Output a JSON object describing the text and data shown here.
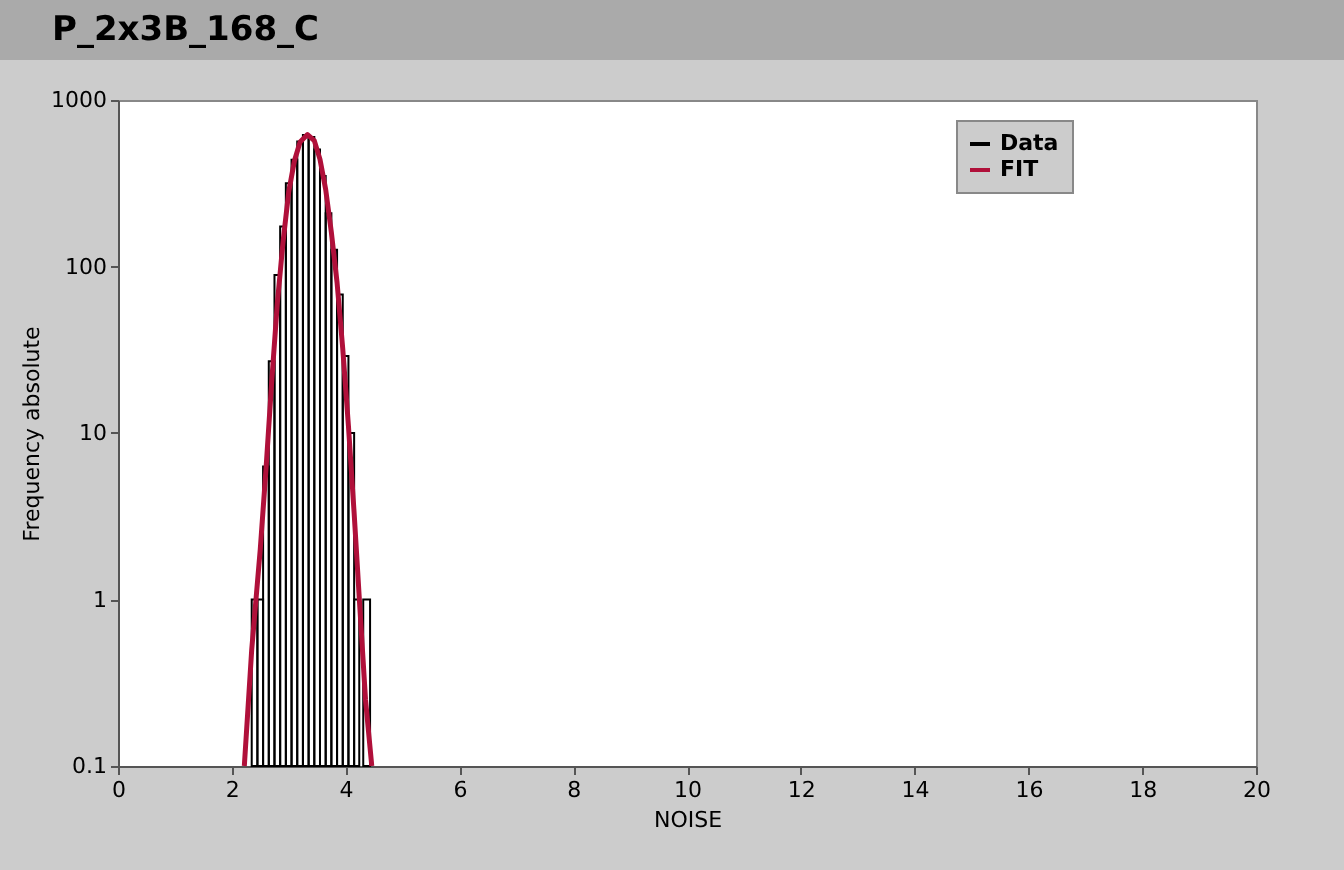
{
  "chart_data": {
    "type": "histogram",
    "title": "P_2x3B_168_C",
    "xlabel": "NOISE",
    "ylabel": "Frequency absolute",
    "log": true,
    "grid": false,
    "legend": "top right",
    "xlim": [
      0,
      20
    ],
    "xticks": [
      0,
      2,
      4,
      6,
      8,
      10,
      12,
      14,
      16,
      18,
      20
    ],
    "ylim": [
      0.1,
      1000
    ],
    "yticks": [
      0.1,
      1,
      10,
      100,
      1000
    ],
    "bins": [
      2.35,
      2.45,
      2.55,
      2.65,
      2.75,
      2.85,
      2.95,
      3.05,
      3.15,
      3.25,
      3.35,
      3.45,
      3.55,
      3.65,
      3.75,
      3.85,
      3.95,
      4.05,
      4.15,
      4.24,
      4.31,
      4.43
    ],
    "series": [
      {
        "name": "Data",
        "color": "#000000",
        "values": [
          1,
          1,
          6.3,
          27,
          89,
          174,
          316,
          437,
          563,
          617,
          600,
          504,
          349,
          209,
          126,
          68,
          29,
          10,
          1,
          null,
          1
        ]
      },
      {
        "name": "FIT",
        "type": "line",
        "color": "#b0103a",
        "x": [
          2.22,
          2.35,
          2.5,
          2.6,
          2.7,
          2.8,
          2.9,
          3.0,
          3.1,
          3.2,
          3.33,
          3.45,
          3.55,
          3.65,
          3.75,
          3.85,
          3.95,
          4.05,
          4.15,
          4.25,
          4.35,
          4.46
        ],
        "values": [
          0.1,
          0.5,
          2,
          6,
          20,
          60,
          140,
          280,
          430,
          560,
          620,
          570,
          440,
          290,
          160,
          80,
          32,
          11,
          3.3,
          0.9,
          0.25,
          0.1
        ]
      }
    ]
  }
}
